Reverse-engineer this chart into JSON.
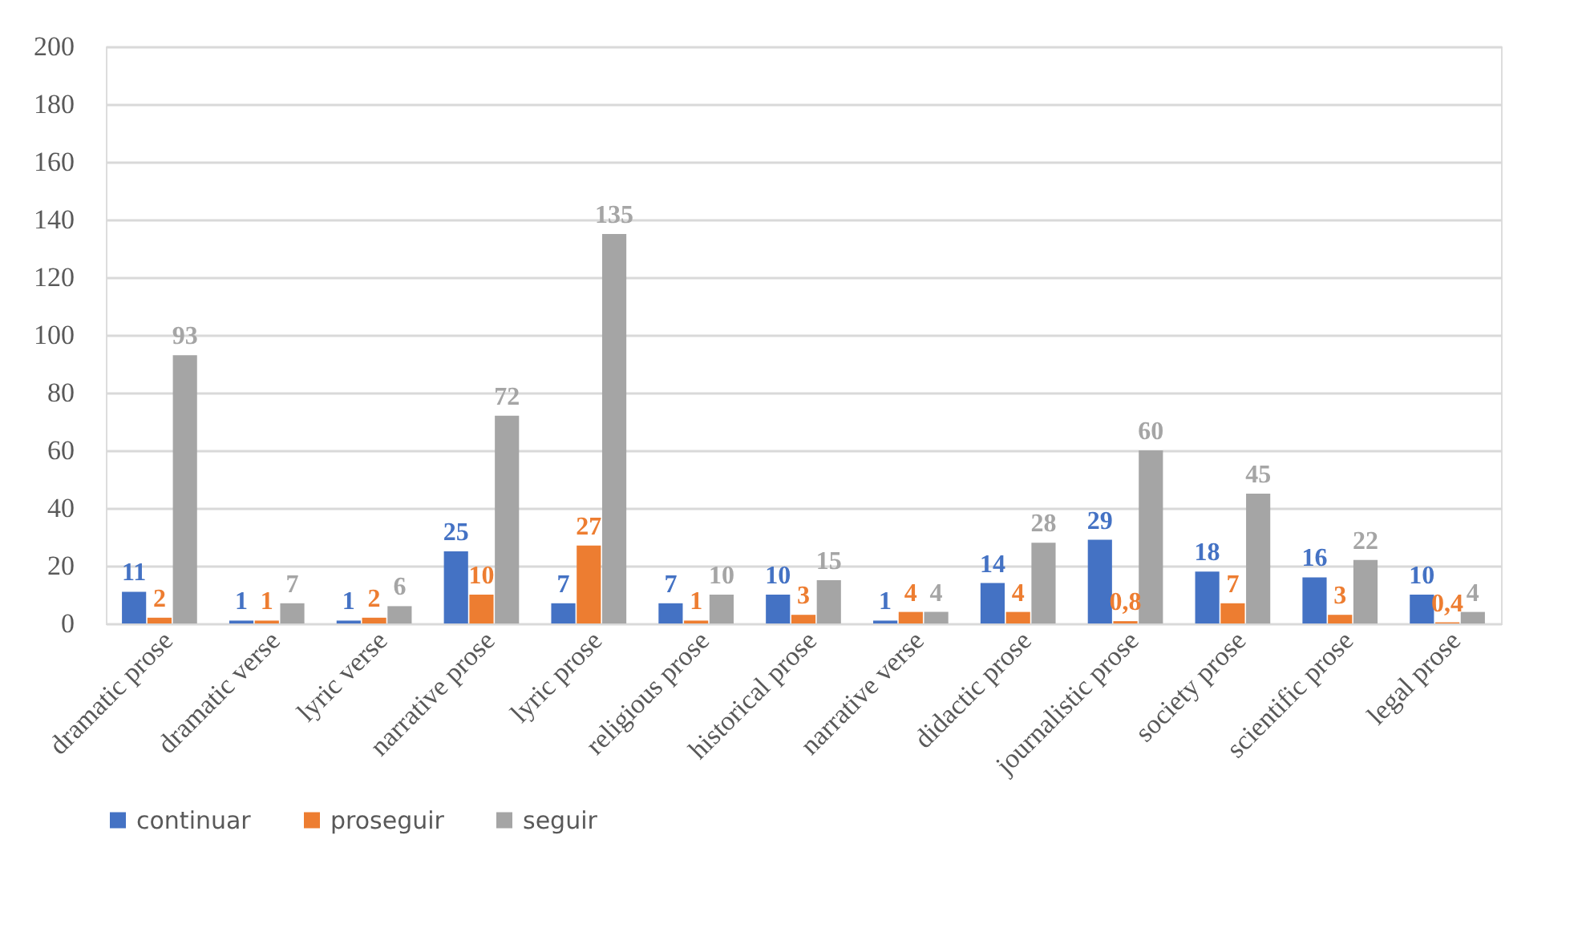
{
  "chart_data": {
    "type": "bar",
    "categories": [
      "dramatic prose",
      "dramatic verse",
      "lyric verse",
      "narrative prose",
      "lyric prose",
      "religious prose",
      "historical prose",
      "narrative verse",
      "didactic prose",
      "journalistic prose",
      "society prose",
      "scientific prose",
      "legal prose"
    ],
    "series": [
      {
        "name": "continuar",
        "color": "#4472c4",
        "values": [
          11,
          1,
          1,
          25,
          7,
          7,
          10,
          1,
          14,
          29,
          18,
          16,
          10
        ],
        "value_labels": [
          "11",
          "1",
          "1",
          "25",
          "7",
          "7",
          "10",
          "1",
          "14",
          "29",
          "18",
          "16",
          "10"
        ]
      },
      {
        "name": "proseguir",
        "color": "#ed7d31",
        "values": [
          2,
          1,
          2,
          10,
          27,
          1,
          3,
          4,
          4,
          0.8,
          7,
          3,
          0.4
        ],
        "value_labels": [
          "2",
          "1",
          "2",
          "10",
          "27",
          "1",
          "3",
          "4",
          "4",
          "0,8",
          "7",
          "3",
          "0,4"
        ]
      },
      {
        "name": "seguir",
        "color": "#a5a5a5",
        "values": [
          93,
          7,
          6,
          72,
          135,
          10,
          15,
          4,
          28,
          60,
          45,
          22,
          4
        ],
        "value_labels": [
          "93",
          "7",
          "6",
          "72",
          "135",
          "10",
          "15",
          "4",
          "28",
          "60",
          "45",
          "22",
          "4"
        ]
      }
    ],
    "ylim": [
      0,
      200
    ],
    "yticks": [
      0,
      20,
      40,
      60,
      80,
      100,
      120,
      140,
      160,
      180,
      200
    ],
    "grid": "y",
    "legend": "bottom"
  }
}
